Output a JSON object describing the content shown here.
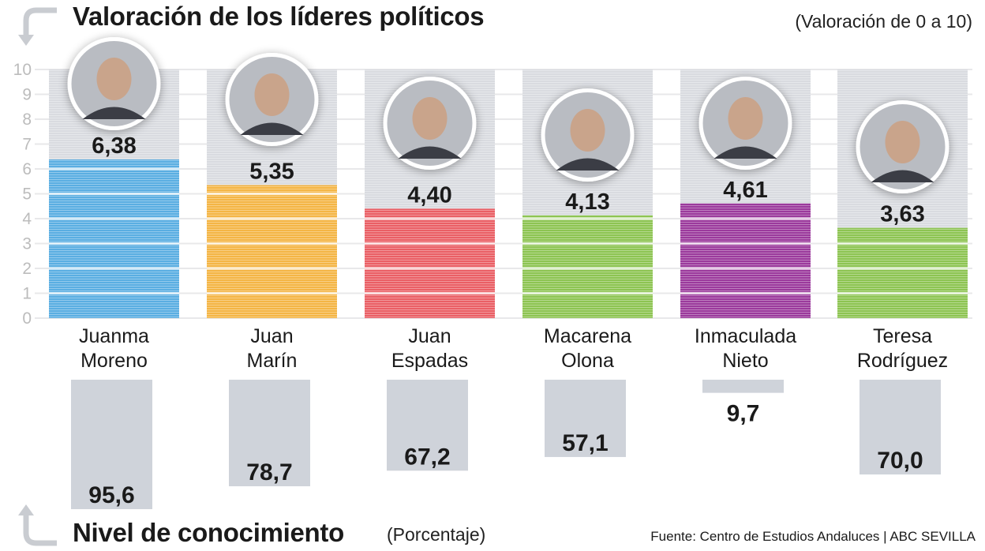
{
  "header": {
    "title": "Valoración de los líderes políticos",
    "scale_note": "(Valoración de 0 a 10)"
  },
  "footer": {
    "title": "Nivel de conocimiento",
    "unit_note": "(Porcentaje)",
    "source": "Fuente: Centro de Estudios Andaluces |  ABC SEVILLA"
  },
  "chart_data": [
    {
      "type": "bar",
      "title": "Valoración de los líderes políticos",
      "subtitle": "(Valoración de 0 a 10)",
      "xlabel": "",
      "ylabel": "",
      "ylim": [
        0,
        10
      ],
      "yticks": [
        "0",
        "1",
        "2",
        "3",
        "4",
        "5",
        "6",
        "7",
        "8",
        "9",
        "10"
      ],
      "grid": true,
      "categories": [
        "Juanma Moreno",
        "Juan Marín",
        "Juan Espadas",
        "Macarena Olona",
        "Inmaculada Nieto",
        "Teresa Rodríguez"
      ],
      "category_lines": [
        [
          "Juanma",
          "Moreno"
        ],
        [
          "Juan",
          "Marín"
        ],
        [
          "Juan",
          "Espadas"
        ],
        [
          "Macarena",
          "Olona"
        ],
        [
          "Inmaculada",
          "Nieto"
        ],
        [
          "Teresa",
          "Rodríguez"
        ]
      ],
      "values": [
        6.38,
        5.35,
        4.4,
        4.13,
        4.61,
        3.63
      ],
      "value_labels": [
        "6,38",
        "5,35",
        "4,40",
        "4,13",
        "4,61",
        "3,63"
      ],
      "colors": [
        "#5aaee2",
        "#f4b545",
        "#ea5f65",
        "#8dc452",
        "#9b3a9c",
        "#8dc452"
      ],
      "background_color": "#d9dbe0"
    },
    {
      "type": "bar",
      "orientation": "downward",
      "title": "Nivel de conocimiento",
      "subtitle": "(Porcentaje)",
      "categories": [
        "Juanma Moreno",
        "Juan Marín",
        "Juan Espadas",
        "Macarena Olona",
        "Inmaculada Nieto",
        "Teresa Rodríguez"
      ],
      "values": [
        95.6,
        78.7,
        67.2,
        57.1,
        9.7,
        70.0
      ],
      "value_labels": [
        "95,6",
        "78,7",
        "67,2",
        "57,1",
        "9,7",
        "70,0"
      ],
      "ylim": [
        0,
        100
      ],
      "color": "#cfd3da"
    }
  ]
}
